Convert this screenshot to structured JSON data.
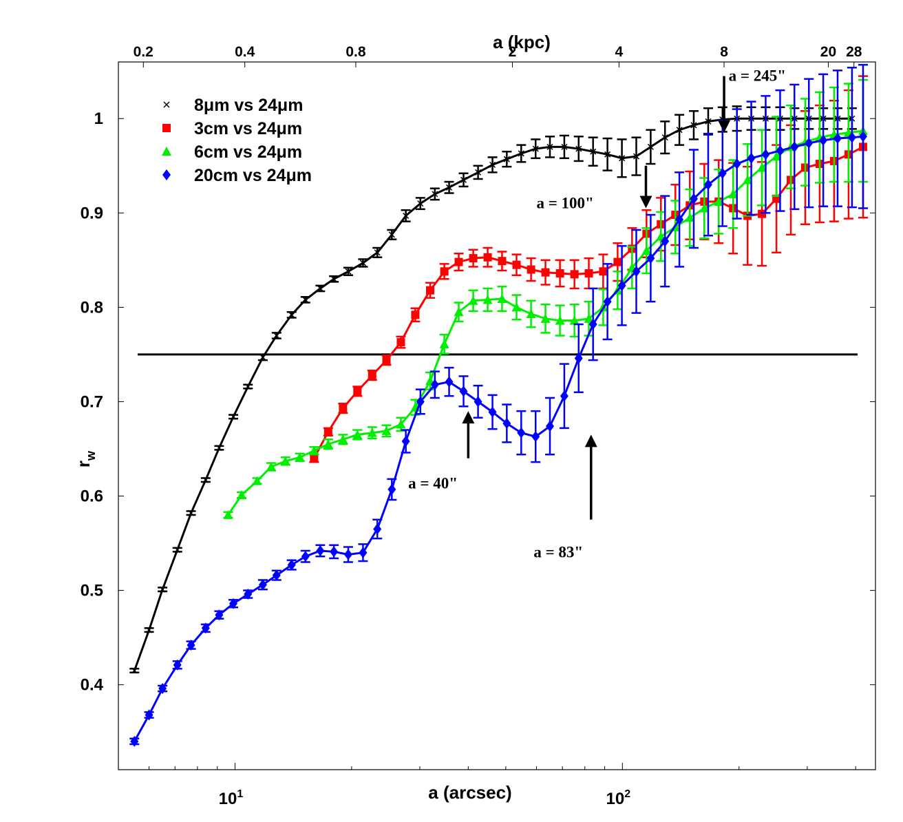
{
  "chart_data": {
    "type": "line",
    "xscale": "log",
    "xlabel": "a (arcsec)",
    "ylabel": "r",
    "ylabel_sub": "w",
    "x2label": "a (kpc)",
    "xlim": [
      5.0,
      450
    ],
    "ylim": [
      0.31,
      1.06
    ],
    "yticks": [
      {
        "v": 0.4,
        "label": "0.4"
      },
      {
        "v": 0.5,
        "label": "0.5"
      },
      {
        "v": 0.6,
        "label": "0.6"
      },
      {
        "v": 0.7,
        "label": "0.7"
      },
      {
        "v": 0.8,
        "label": "0.8"
      },
      {
        "v": 0.9,
        "label": "0.9"
      },
      {
        "v": 1.0,
        "label": "1"
      }
    ],
    "xticks_major": [
      {
        "v": 10,
        "base": "10",
        "exp": "1"
      },
      {
        "v": 100,
        "base": "10",
        "exp": "2"
      }
    ],
    "top_ticks": [
      {
        "x": 5.8,
        "label": "0.2"
      },
      {
        "x": 10.6,
        "label": "0.4"
      },
      {
        "x": 20.5,
        "label": "0.8"
      },
      {
        "x": 52.0,
        "label": "2"
      },
      {
        "x": 98.0,
        "label": "4"
      },
      {
        "x": 183.0,
        "label": "8"
      },
      {
        "x": 340.0,
        "label": "20"
      },
      {
        "x": 396.0,
        "label": "28"
      }
    ],
    "threshold": 0.75,
    "series": [
      {
        "name": "8μm vs 24μm",
        "color": "#000000",
        "marker": "x",
        "x": [
          5.5,
          6.0,
          6.5,
          7.1,
          7.7,
          8.4,
          9.1,
          9.9,
          10.8,
          11.8,
          12.8,
          14.0,
          15.2,
          16.6,
          18.0,
          19.6,
          21.4,
          23.3,
          25.4,
          27.6,
          30.1,
          32.8,
          35.7,
          38.9,
          42.4,
          46.2,
          50.3,
          54.8,
          59.7,
          65.0,
          70.8,
          77.1,
          84.0,
          91.5,
          99.7,
          108.6,
          118.3,
          128.8,
          140.3,
          152.8,
          166.5,
          181.3,
          197.5,
          215.1,
          234.3,
          255.3,
          278.0,
          302.9,
          329.9,
          359.3,
          391.4
        ],
        "y": [
          0.415,
          0.458,
          0.501,
          0.543,
          0.582,
          0.617,
          0.651,
          0.684,
          0.716,
          0.747,
          0.77,
          0.792,
          0.808,
          0.82,
          0.83,
          0.838,
          0.847,
          0.858,
          0.877,
          0.897,
          0.91,
          0.92,
          0.927,
          0.935,
          0.943,
          0.951,
          0.957,
          0.963,
          0.968,
          0.97,
          0.97,
          0.968,
          0.965,
          0.962,
          0.958,
          0.96,
          0.97,
          0.98,
          0.988,
          0.993,
          0.997,
          0.999,
          1.0,
          1.0,
          1.0,
          1.0,
          1.0,
          1.0,
          1.0,
          1.0,
          1.0
        ],
        "err": [
          0.002,
          0.002,
          0.002,
          0.002,
          0.002,
          0.002,
          0.002,
          0.002,
          0.002,
          0.003,
          0.003,
          0.003,
          0.003,
          0.003,
          0.003,
          0.004,
          0.004,
          0.005,
          0.005,
          0.006,
          0.006,
          0.006,
          0.006,
          0.007,
          0.007,
          0.008,
          0.008,
          0.009,
          0.01,
          0.011,
          0.012,
          0.013,
          0.015,
          0.017,
          0.02,
          0.02,
          0.018,
          0.017,
          0.016,
          0.015,
          0.014,
          0.013,
          0.013,
          0.012,
          0.012,
          0.012,
          0.011,
          0.011,
          0.011,
          0.011,
          0.011
        ]
      },
      {
        "name": "3cm vs 24μm",
        "color": "#ff0000",
        "marker": "square",
        "x": [
          16.0,
          17.4,
          19.0,
          20.7,
          22.6,
          24.6,
          26.8,
          29.2,
          31.9,
          34.7,
          37.8,
          41.2,
          44.9,
          48.9,
          53.3,
          58.1,
          63.3,
          69.0,
          75.2,
          81.9,
          89.2,
          97.2,
          105.9,
          115.4,
          125.7,
          137.0,
          149.3,
          162.7,
          177.2,
          193.1,
          210.4,
          229.2,
          249.8,
          272.1,
          296.5,
          323.0,
          351.9,
          383.5,
          418.0
        ],
        "y": [
          0.64,
          0.668,
          0.693,
          0.711,
          0.728,
          0.744,
          0.763,
          0.792,
          0.818,
          0.838,
          0.848,
          0.852,
          0.853,
          0.849,
          0.845,
          0.84,
          0.837,
          0.836,
          0.835,
          0.836,
          0.838,
          0.848,
          0.862,
          0.878,
          0.888,
          0.898,
          0.908,
          0.912,
          0.912,
          0.905,
          0.897,
          0.899,
          0.915,
          0.935,
          0.948,
          0.952,
          0.955,
          0.962,
          0.97
        ],
        "err": [
          0.004,
          0.004,
          0.005,
          0.005,
          0.005,
          0.005,
          0.006,
          0.007,
          0.008,
          0.008,
          0.009,
          0.009,
          0.01,
          0.01,
          0.011,
          0.012,
          0.013,
          0.014,
          0.015,
          0.016,
          0.018,
          0.02,
          0.022,
          0.025,
          0.028,
          0.032,
          0.036,
          0.04,
          0.044,
          0.048,
          0.052,
          0.055,
          0.057,
          0.058,
          0.06,
          0.062,
          0.064,
          0.068,
          0.075
        ]
      },
      {
        "name": "6cm vs 24μm",
        "color": "#00ee00",
        "marker": "triangle",
        "x": [
          9.6,
          10.4,
          11.4,
          12.4,
          13.5,
          14.7,
          16.0,
          17.4,
          19.0,
          20.7,
          22.6,
          24.6,
          26.8,
          29.2,
          31.9,
          34.7,
          37.8,
          41.2,
          44.9,
          48.9,
          53.3,
          58.1,
          63.3,
          69.0,
          75.2,
          81.9,
          89.2,
          97.2,
          105.9,
          115.4,
          125.7,
          137.0,
          149.3,
          162.7,
          177.2,
          193.1,
          210.4,
          229.2,
          249.8,
          272.1,
          296.5,
          323.0,
          351.9,
          383.5,
          418.0
        ],
        "y": [
          0.58,
          0.601,
          0.616,
          0.631,
          0.637,
          0.641,
          0.648,
          0.655,
          0.66,
          0.665,
          0.667,
          0.669,
          0.676,
          0.694,
          0.722,
          0.761,
          0.795,
          0.807,
          0.808,
          0.809,
          0.8,
          0.793,
          0.788,
          0.786,
          0.786,
          0.788,
          0.8,
          0.818,
          0.842,
          0.86,
          0.875,
          0.885,
          0.895,
          0.905,
          0.912,
          0.92,
          0.935,
          0.948,
          0.96,
          0.97,
          0.975,
          0.98,
          0.983,
          0.985,
          0.987
        ],
        "err": [
          0.003,
          0.003,
          0.003,
          0.004,
          0.004,
          0.004,
          0.004,
          0.005,
          0.005,
          0.005,
          0.006,
          0.006,
          0.007,
          0.008,
          0.009,
          0.01,
          0.01,
          0.011,
          0.012,
          0.013,
          0.013,
          0.014,
          0.015,
          0.016,
          0.017,
          0.018,
          0.019,
          0.02,
          0.022,
          0.024,
          0.026,
          0.028,
          0.03,
          0.032,
          0.034,
          0.036,
          0.038,
          0.04,
          0.042,
          0.044,
          0.046,
          0.048,
          0.05,
          0.052,
          0.054
        ]
      },
      {
        "name": "20cm vs 24μm",
        "color": "#0000ff",
        "marker": "diamond",
        "x": [
          5.5,
          6.0,
          6.5,
          7.1,
          7.7,
          8.4,
          9.1,
          9.9,
          10.8,
          11.8,
          12.8,
          14.0,
          15.2,
          16.6,
          18.0,
          19.6,
          21.4,
          23.3,
          25.4,
          27.6,
          30.1,
          32.8,
          35.7,
          38.9,
          42.4,
          46.2,
          50.3,
          54.8,
          59.7,
          65.0,
          70.8,
          77.1,
          84.0,
          91.5,
          99.7,
          108.6,
          118.3,
          128.8,
          140.3,
          152.8,
          166.5,
          181.3,
          197.5,
          215.1,
          234.3,
          255.3,
          278.0,
          302.9,
          329.9,
          359.3,
          391.4,
          418.0
        ],
        "y": [
          0.34,
          0.368,
          0.396,
          0.421,
          0.442,
          0.46,
          0.474,
          0.486,
          0.496,
          0.506,
          0.516,
          0.527,
          0.536,
          0.542,
          0.541,
          0.538,
          0.54,
          0.565,
          0.607,
          0.658,
          0.7,
          0.718,
          0.721,
          0.711,
          0.7,
          0.689,
          0.677,
          0.667,
          0.663,
          0.674,
          0.706,
          0.746,
          0.782,
          0.806,
          0.823,
          0.838,
          0.852,
          0.87,
          0.893,
          0.915,
          0.93,
          0.942,
          0.952,
          0.958,
          0.962,
          0.966,
          0.97,
          0.974,
          0.977,
          0.979,
          0.98,
          0.981
        ],
        "err": [
          0.003,
          0.003,
          0.003,
          0.004,
          0.004,
          0.004,
          0.004,
          0.004,
          0.004,
          0.005,
          0.005,
          0.005,
          0.006,
          0.006,
          0.007,
          0.008,
          0.009,
          0.01,
          0.011,
          0.012,
          0.013,
          0.014,
          0.015,
          0.016,
          0.017,
          0.018,
          0.02,
          0.023,
          0.027,
          0.03,
          0.034,
          0.036,
          0.038,
          0.04,
          0.042,
          0.044,
          0.046,
          0.048,
          0.05,
          0.052,
          0.054,
          0.056,
          0.058,
          0.06,
          0.062,
          0.064,
          0.066,
          0.068,
          0.07,
          0.072,
          0.074,
          0.076
        ]
      }
    ],
    "annotations": [
      {
        "text": "a = 245\"",
        "x": 183,
        "y_from": 1.045,
        "y_to": 0.985,
        "dir": "down",
        "text_x": 188,
        "text_y": 1.04
      },
      {
        "text": "a = 100\"",
        "x": 115,
        "y_from": 0.95,
        "y_to": 0.905,
        "dir": "down",
        "text_x": 60,
        "text_y": 0.905
      },
      {
        "text": "a = 40\"",
        "x": 40,
        "y_from": 0.64,
        "y_to": 0.69,
        "dir": "up",
        "text_x": 28,
        "text_y": 0.608
      },
      {
        "text": "a = 83\"",
        "x": 83,
        "y_from": 0.575,
        "y_to": 0.665,
        "dir": "up",
        "text_x": 59,
        "text_y": 0.535
      }
    ]
  }
}
